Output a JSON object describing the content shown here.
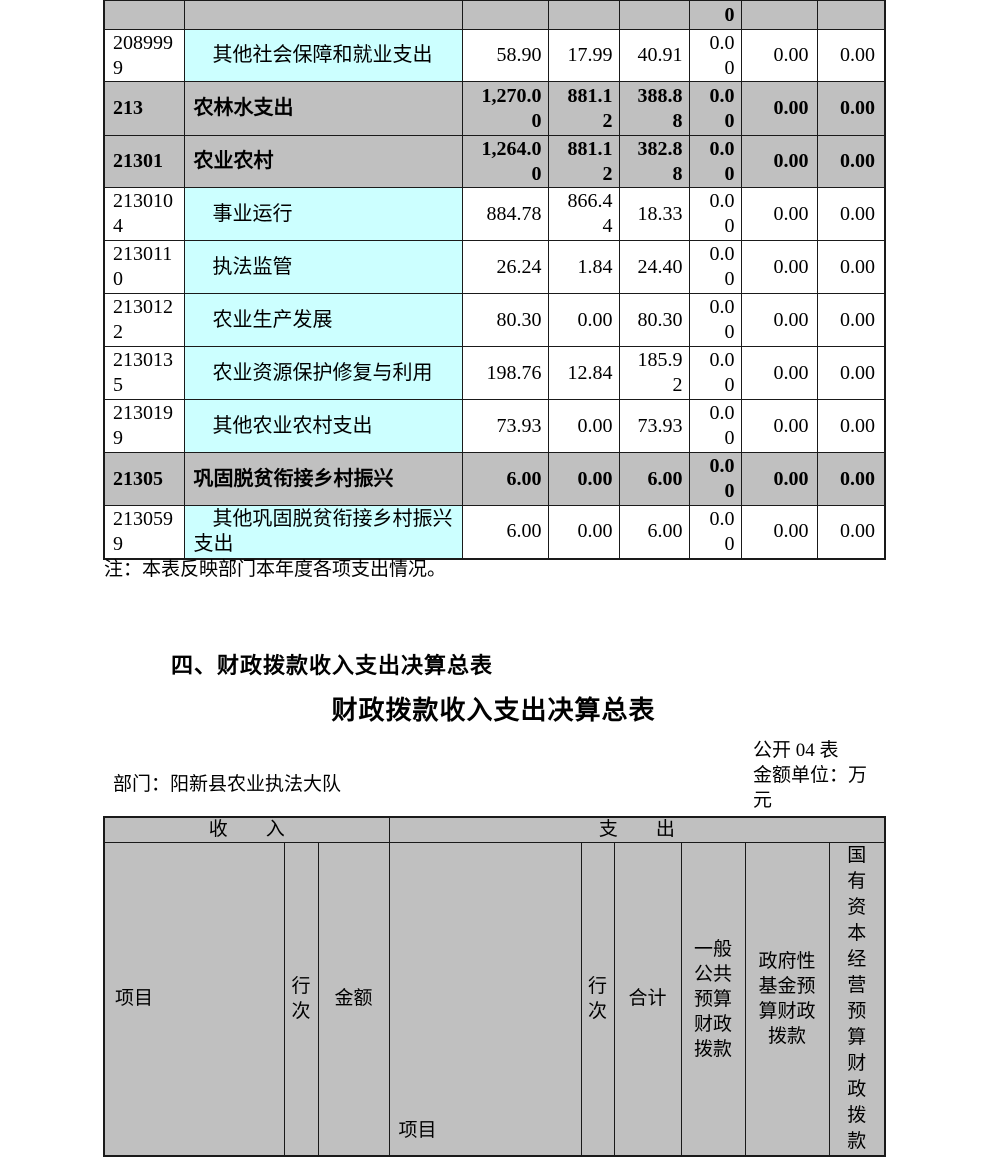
{
  "colors": {
    "header_row_gray": "#c0c0c0",
    "item_cell_cyan": "#ccffff",
    "grid_border": "#1a1a1a",
    "text": "#000000"
  },
  "expenditure_table": {
    "partial_row": {
      "col6": "0"
    },
    "rows": [
      {
        "code": "2089999",
        "name": "其他社会保障和就业支出",
        "emphasis": false,
        "values": [
          "58.90",
          "17.99",
          "40.91",
          "0.00",
          "0.00",
          "0.00"
        ]
      },
      {
        "code": "213",
        "name": "农林水支出",
        "emphasis": true,
        "values": [
          "1,270.00",
          "881.12",
          "388.88",
          "0.00",
          "0.00",
          "0.00"
        ]
      },
      {
        "code": "21301",
        "name": "农业农村",
        "emphasis": true,
        "values": [
          "1,264.00",
          "881.12",
          "382.88",
          "0.00",
          "0.00",
          "0.00"
        ]
      },
      {
        "code": "2130104",
        "name": "事业运行",
        "emphasis": false,
        "values": [
          "884.78",
          "866.44",
          "18.33",
          "0.00",
          "0.00",
          "0.00"
        ]
      },
      {
        "code": "2130110",
        "name": "执法监管",
        "emphasis": false,
        "values": [
          "26.24",
          "1.84",
          "24.40",
          "0.00",
          "0.00",
          "0.00"
        ]
      },
      {
        "code": "2130122",
        "name": "农业生产发展",
        "emphasis": false,
        "values": [
          "80.30",
          "0.00",
          "80.30",
          "0.00",
          "0.00",
          "0.00"
        ]
      },
      {
        "code": "2130135",
        "name": "农业资源保护修复与利用",
        "emphasis": false,
        "values": [
          "198.76",
          "12.84",
          "185.92",
          "0.00",
          "0.00",
          "0.00"
        ]
      },
      {
        "code": "2130199",
        "name": "其他农业农村支出",
        "emphasis": false,
        "values": [
          "73.93",
          "0.00",
          "73.93",
          "0.00",
          "0.00",
          "0.00"
        ]
      },
      {
        "code": "21305",
        "name": "巩固脱贫衔接乡村振兴",
        "emphasis": true,
        "values": [
          "6.00",
          "0.00",
          "6.00",
          "0.00",
          "0.00",
          "0.00"
        ]
      },
      {
        "code": "2130599",
        "name": "其他巩固脱贫衔接乡村振兴支出",
        "emphasis": false,
        "values": [
          "6.00",
          "0.00",
          "6.00",
          "0.00",
          "0.00",
          "0.00"
        ]
      }
    ],
    "note": "注：本表反映部门本年度各项支出情况。"
  },
  "section": {
    "heading": "四、财政拨款收入支出决算总表",
    "table_title": "财政拨款收入支出决算总表",
    "table_code": "公开 04 表",
    "unit_label": "金额单位：万元",
    "department_label": "部门：阳新县农业执法大队"
  },
  "summary_table": {
    "income_band": "收　　入",
    "expense_band": "支　　出",
    "income_headers": {
      "item": "项目",
      "line_no": "行次",
      "amount": "金额"
    },
    "expense_headers": {
      "item": "项目",
      "line_no": "行次",
      "total": "合计",
      "general_budget": "一般公共预算财政拨款",
      "gov_fund_budget": "政府性基金预算财政拨款",
      "state_capital_budget": "国有资本经营预算财政拨款"
    }
  }
}
